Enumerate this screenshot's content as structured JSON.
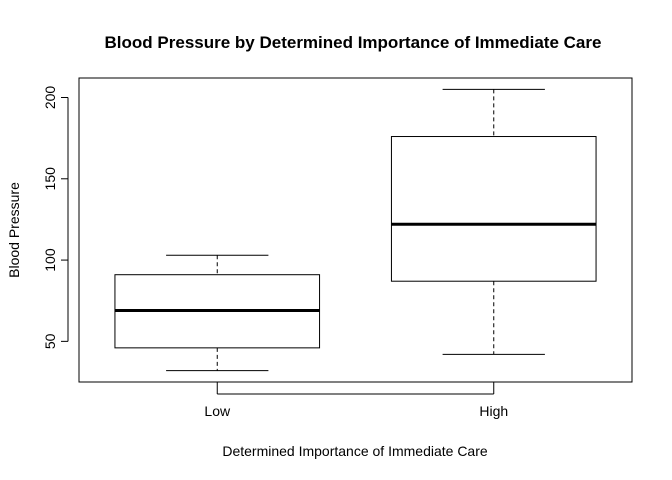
{
  "chart_data": {
    "type": "boxplot",
    "title": "Blood Pressure by Determined Importance of Immediate Care",
    "xlabel": "Determined Importance of Immediate Care",
    "ylabel": "Blood Pressure",
    "categories": [
      "Low",
      "High"
    ],
    "boxes": [
      {
        "category": "Low",
        "whisker_low": 32,
        "q1": 46,
        "median": 69,
        "q3": 91,
        "whisker_high": 103
      },
      {
        "category": "High",
        "whisker_low": 42,
        "q1": 87,
        "median": 122,
        "q3": 176,
        "whisker_high": 205
      }
    ],
    "ylim": [
      25,
      212
    ],
    "yticks": [
      50,
      100,
      150,
      200
    ],
    "grid": false
  }
}
